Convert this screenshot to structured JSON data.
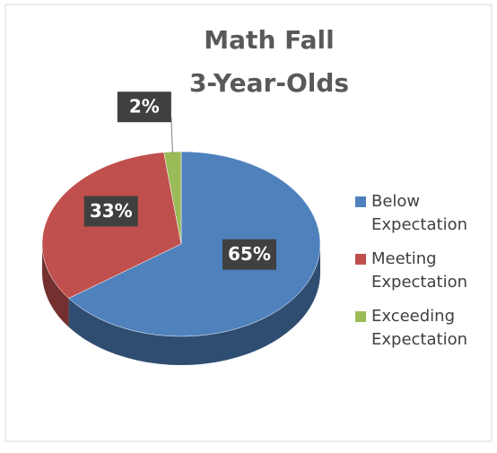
{
  "chart_data": {
    "type": "pie",
    "title": [
      "Math Fall",
      "3-Year-Olds"
    ],
    "categories": [
      "Below Expectation",
      "Meeting Expectation",
      "Exceeding Expectation"
    ],
    "values": [
      65,
      33,
      2
    ],
    "value_labels": [
      "65%",
      "33%",
      "2%"
    ],
    "colors": [
      "#4f81bd",
      "#c0504d",
      "#9bbb59"
    ],
    "legend": "right"
  }
}
